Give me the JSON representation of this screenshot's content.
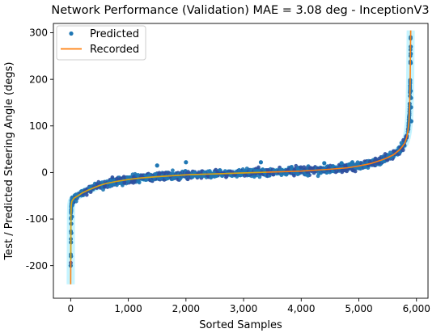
{
  "chart_data": {
    "type": "scatter",
    "title": "Network Performance (Validation)  MAE = 3.08 deg - InceptionV3",
    "xlabel": "Sorted Samples",
    "ylabel": "Test / Predicted Steering Angle (degs)",
    "xlim": [
      -300,
      6200
    ],
    "ylim": [
      -270,
      320
    ],
    "x_ticks": [
      0,
      1000,
      2000,
      3000,
      4000,
      5000,
      6000
    ],
    "x_tick_labels": [
      "0",
      "1,000",
      "2,000",
      "3,000",
      "4,000",
      "5,000",
      "6,000"
    ],
    "y_ticks": [
      -200,
      -100,
      0,
      100,
      200,
      300
    ],
    "y_tick_labels": [
      "-200",
      "-100",
      "0",
      "100",
      "200",
      "300"
    ],
    "grid": false,
    "legend_position": "top-left",
    "legend": [
      {
        "label": "Predicted",
        "marker": "dot",
        "color": "#1f77b4"
      },
      {
        "label": "Recorded",
        "marker": "line",
        "color": "#ff7f0e"
      }
    ],
    "series": [
      {
        "name": "Recorded",
        "kind": "line",
        "color": "#ff7f0e",
        "x": [
          0,
          5,
          10,
          20,
          40,
          60,
          100,
          150,
          200,
          300,
          400,
          500,
          600,
          800,
          1000,
          1200,
          1500,
          2000,
          2500,
          3000,
          3500,
          4000,
          4500,
          4800,
          5000,
          5200,
          5400,
          5500,
          5600,
          5700,
          5750,
          5800,
          5830,
          5850,
          5870,
          5880,
          5890,
          5895,
          5900
        ],
        "y": [
          -240,
          -90,
          -70,
          -62,
          -58,
          -55,
          -52,
          -48,
          -44,
          -38,
          -33,
          -28,
          -24,
          -19,
          -15,
          -12,
          -9,
          -5,
          -3,
          -1,
          1,
          3,
          7,
          10,
          14,
          19,
          27,
          32,
          38,
          48,
          55,
          64,
          75,
          88,
          110,
          140,
          190,
          250,
          305
        ]
      },
      {
        "name": "Predicted",
        "kind": "scatter",
        "color": "#1f77b4",
        "outliers_x": [
          0,
          5,
          5,
          10,
          10,
          20,
          1500,
          2000,
          3300,
          4400,
          4700,
          5900,
          5900,
          5900,
          5900,
          5905,
          5905,
          5910
        ],
        "outliers_y": [
          -200,
          -180,
          -150,
          -130,
          -110,
          -95,
          15,
          22,
          22,
          20,
          20,
          270,
          255,
          235,
          175,
          160,
          140,
          110
        ]
      }
    ]
  }
}
